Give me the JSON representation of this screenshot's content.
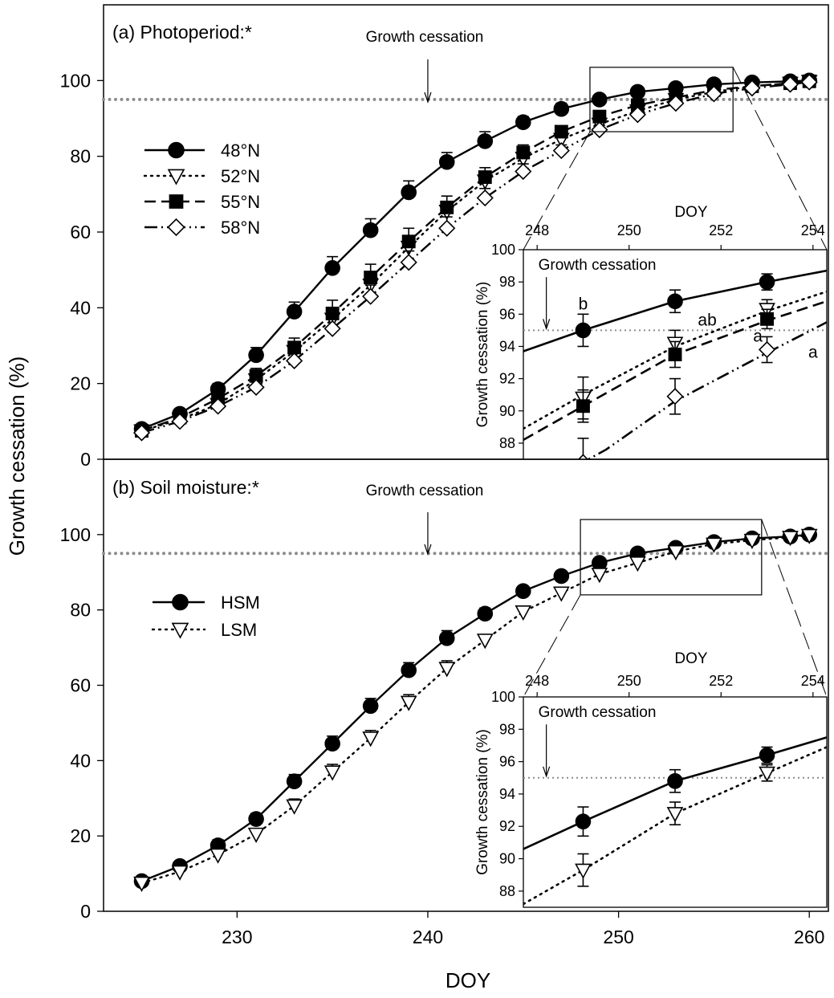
{
  "figure": {
    "shared_ylabel": "Growth cessation (%)",
    "shared_xlabel": "DOY"
  },
  "chart_data": [
    {
      "id": "panel-a",
      "type": "line",
      "title": "(a) Photoperiod:*",
      "xlabel": "DOY",
      "ylabel": "Growth cessation (%)",
      "xlim": [
        223,
        261
      ],
      "ylim": [
        0,
        120
      ],
      "xticks": [
        230,
        240,
        250,
        260
      ],
      "yticks": [
        0,
        20,
        40,
        60,
        80,
        100
      ],
      "threshold": 95,
      "annotation": {
        "text": "Growth cessation",
        "x": 240
      },
      "legend": "left",
      "series": [
        {
          "name": "48°N",
          "marker": "circle-filled",
          "dash": "solid",
          "x": [
            225,
            227,
            229,
            231,
            233,
            235,
            237,
            239,
            241,
            243,
            245,
            247,
            249,
            251,
            253,
            255,
            257,
            259,
            260
          ],
          "y": [
            8,
            12,
            18.5,
            27.5,
            39,
            50.5,
            60.5,
            70.5,
            78.5,
            84,
            89,
            92.5,
            95,
            97,
            98,
            99,
            99.5,
            99.8,
            100
          ],
          "err": [
            0.8,
            1,
            1.5,
            2,
            2.5,
            3,
            3,
            3,
            2.5,
            2.5,
            1.5,
            1.5,
            1,
            0.8,
            0.8,
            0.5,
            0.3,
            0.2,
            0.2
          ]
        },
        {
          "name": "52°N",
          "marker": "triangle-down-open",
          "dash": "dot",
          "x": [
            225,
            227,
            229,
            231,
            233,
            235,
            237,
            239,
            241,
            243,
            245,
            247,
            249,
            251,
            253,
            255,
            257,
            259,
            260
          ],
          "y": [
            7.5,
            10.5,
            14.5,
            21,
            28.5,
            37,
            46,
            56,
            65.5,
            73.5,
            79.5,
            84.5,
            88.5,
            92,
            95,
            97,
            98.5,
            99.3,
            99.8
          ],
          "err": [
            0.8,
            1,
            1.5,
            2,
            2.5,
            3,
            3,
            3,
            2.5,
            2.5,
            2,
            1.5,
            1.2,
            1,
            0.8,
            0.6,
            0.4,
            0.3,
            0.2
          ]
        },
        {
          "name": "55°N",
          "marker": "square-filled",
          "dash": "dash",
          "x": [
            225,
            227,
            229,
            231,
            233,
            235,
            237,
            239,
            241,
            243,
            245,
            247,
            249,
            251,
            253,
            255,
            257,
            259,
            260
          ],
          "y": [
            7.5,
            11,
            16,
            22,
            29.5,
            38.5,
            48,
            57.5,
            66.5,
            74.5,
            81,
            86.5,
            90.5,
            93.5,
            95.5,
            97.5,
            98.5,
            99.3,
            99.8
          ],
          "err": [
            0.8,
            1,
            1.5,
            2,
            2.5,
            3.5,
            3.5,
            3.5,
            3,
            2.5,
            2,
            1.5,
            1.2,
            1,
            0.8,
            0.6,
            0.4,
            0.3,
            0.2
          ]
        },
        {
          "name": "58°N",
          "marker": "diamond-open",
          "dash": "dashdotdot",
          "x": [
            225,
            227,
            229,
            231,
            233,
            235,
            237,
            239,
            241,
            243,
            245,
            247,
            249,
            251,
            253,
            255,
            257,
            259,
            260
          ],
          "y": [
            7,
            10,
            14,
            19,
            26,
            34.5,
            43,
            52,
            61,
            69,
            76,
            81.5,
            87,
            91,
            94,
            96.5,
            98,
            99,
            99.6
          ],
          "err": [
            0.8,
            1,
            1.5,
            2,
            2,
            2.5,
            3,
            3,
            3,
            2.5,
            2,
            1.5,
            1.2,
            1,
            0.8,
            0.6,
            0.4,
            0.3,
            0.2
          ]
        }
      ],
      "inset": {
        "xlabel": "DOY",
        "ylabel": "Growth cessation (%)",
        "xlim": [
          247.7,
          254.3
        ],
        "ylim": [
          87,
          100
        ],
        "xticks": [
          248,
          250,
          252,
          254
        ],
        "yticks": [
          88,
          90,
          92,
          94,
          96,
          98,
          100
        ],
        "threshold": 95,
        "annotation": {
          "text": "Growth cessation",
          "x": 248.2
        },
        "points": [
          {
            "series": "48°N",
            "x": [
              249,
              251,
              253
            ],
            "y": [
              95,
              96.8,
              98
            ],
            "err": [
              1,
              0.7,
              0.5
            ]
          },
          {
            "series": "52°N",
            "x": [
              249,
              251,
              253
            ],
            "y": [
              90.8,
              94.2,
              96.3
            ],
            "err": [
              1.3,
              0.8,
              0.6
            ]
          },
          {
            "series": "55°N",
            "x": [
              249,
              251,
              253
            ],
            "y": [
              90.3,
              93.5,
              95.7
            ],
            "err": [
              1,
              0.8,
              0.6
            ]
          },
          {
            "series": "58°N",
            "x": [
              249,
              251,
              253
            ],
            "y": [
              86.8,
              90.9,
              93.8
            ],
            "err": [
              1.5,
              1.1,
              0.8
            ]
          }
        ],
        "curves": [
          {
            "series": "48°N",
            "x": [
              247.7,
              249,
              251,
              253,
              254.3
            ],
            "y": [
              93.7,
              95,
              96.8,
              98,
              98.7
            ]
          },
          {
            "series": "52°N",
            "x": [
              247.7,
              249,
              251,
              253,
              254.3
            ],
            "y": [
              88.9,
              91,
              94,
              96.2,
              97.4
            ]
          },
          {
            "series": "55°N",
            "x": [
              247.7,
              249,
              251,
              253,
              254.3
            ],
            "y": [
              88.2,
              90.3,
              93.5,
              95.6,
              96.8
            ]
          },
          {
            "series": "58°N",
            "x": [
              248.8,
              249.5,
              251,
              253,
              254.3
            ],
            "y": [
              86.5,
              87.6,
              90.6,
              93.6,
              95.5
            ]
          }
        ],
        "letters": [
          {
            "text": "b",
            "x": 249.0,
            "y": 96.3
          },
          {
            "text": "ab",
            "x": 251.7,
            "y": 95.3
          },
          {
            "text": "a",
            "x": 252.8,
            "y": 94.3
          },
          {
            "text": "a",
            "x": 254.0,
            "y": 93.3
          }
        ]
      }
    },
    {
      "id": "panel-b",
      "type": "line",
      "title": "(b) Soil moisture:*",
      "xlabel": "DOY",
      "ylabel": "Growth cessation (%)",
      "xlim": [
        223,
        261
      ],
      "ylim": [
        0,
        120
      ],
      "xticks": [
        230,
        240,
        250,
        260
      ],
      "yticks": [
        0,
        20,
        40,
        60,
        80,
        100
      ],
      "threshold": 95,
      "annotation": {
        "text": "Growth cessation",
        "x": 240
      },
      "legend": "left",
      "series": [
        {
          "name": "HSM",
          "marker": "circle-filled",
          "dash": "solid",
          "x": [
            225,
            227,
            229,
            231,
            233,
            235,
            237,
            239,
            241,
            243,
            245,
            247,
            249,
            251,
            253,
            255,
            257,
            259,
            260
          ],
          "y": [
            8,
            12,
            17.5,
            24.5,
            34.5,
            44.5,
            54.5,
            64,
            72.5,
            79,
            85,
            89,
            92.5,
            95,
            96.5,
            98,
            99,
            99.5,
            100
          ],
          "err": [
            0.8,
            1,
            1.5,
            1.5,
            1.8,
            2,
            2,
            2,
            2,
            1.5,
            1.2,
            1,
            1,
            0.8,
            0.6,
            0.4,
            0.3,
            0.2,
            0.2
          ]
        },
        {
          "name": "LSM",
          "marker": "triangle-down-open",
          "dash": "dot",
          "x": [
            225,
            227,
            229,
            231,
            233,
            235,
            237,
            239,
            241,
            243,
            245,
            247,
            249,
            251,
            253,
            255,
            257,
            259,
            260
          ],
          "y": [
            7.5,
            10.5,
            15,
            20.5,
            28,
            37,
            46,
            55.5,
            64.5,
            72,
            79.5,
            84.5,
            89.5,
            92.5,
            95.5,
            97.5,
            98.5,
            99.3,
            99.8
          ],
          "err": [
            0.8,
            1,
            1.2,
            1.5,
            1.8,
            2,
            2,
            2,
            2,
            1.5,
            1.2,
            1,
            1,
            0.8,
            0.6,
            0.4,
            0.3,
            0.2,
            0.2
          ]
        }
      ],
      "inset": {
        "xlabel": "DOY",
        "ylabel": "Growth cessation (%)",
        "xlim": [
          247.7,
          254.3
        ],
        "ylim": [
          87,
          100
        ],
        "xticks": [
          248,
          250,
          252,
          254
        ],
        "yticks": [
          88,
          90,
          92,
          94,
          96,
          98,
          100
        ],
        "threshold": 95,
        "annotation": {
          "text": "Growth cessation",
          "x": 248.2
        },
        "points": [
          {
            "series": "HSM",
            "x": [
              249,
              251,
              253
            ],
            "y": [
              92.3,
              94.8,
              96.4
            ],
            "err": [
              0.9,
              0.7,
              0.5
            ]
          },
          {
            "series": "LSM",
            "x": [
              249,
              251,
              253
            ],
            "y": [
              89.3,
              92.8,
              95.3
            ],
            "err": [
              1.0,
              0.7,
              0.5
            ]
          }
        ],
        "curves": [
          {
            "series": "HSM",
            "x": [
              247.7,
              249,
              251,
              253,
              254.3
            ],
            "y": [
              90.6,
              92.3,
              94.8,
              96.4,
              97.5
            ]
          },
          {
            "series": "LSM",
            "x": [
              247.7,
              249,
              251,
              253,
              254.3
            ],
            "y": [
              87.2,
              89.3,
              92.8,
              95.3,
              96.9
            ]
          }
        ],
        "letters": []
      }
    }
  ]
}
